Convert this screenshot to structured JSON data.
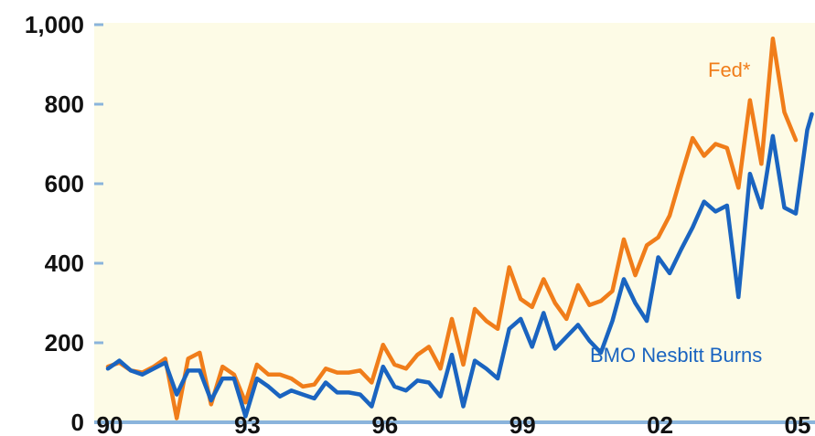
{
  "chart_data": {
    "type": "line",
    "title": "",
    "xlabel": "",
    "ylabel": "",
    "ylim": [
      0,
      1000
    ],
    "xlim": [
      1990,
      2005
    ],
    "grid": false,
    "y_ticks": [
      {
        "value": 0,
        "label": "0"
      },
      {
        "value": 200,
        "label": "200"
      },
      {
        "value": 400,
        "label": "400"
      },
      {
        "value": 600,
        "label": "600"
      },
      {
        "value": 800,
        "label": "800"
      },
      {
        "value": 1000,
        "label": "1,000"
      }
    ],
    "x_ticks": [
      {
        "value": 1990,
        "label": "90"
      },
      {
        "value": 1993,
        "label": "93"
      },
      {
        "value": 1996,
        "label": "96"
      },
      {
        "value": 1999,
        "label": "99"
      },
      {
        "value": 2002,
        "label": "02"
      },
      {
        "value": 2005,
        "label": "05"
      }
    ],
    "colors": {
      "plot_background": "#fdfbe6",
      "axis": "#8ab4dc",
      "fed": "#f07d1a",
      "bmo": "#1a64c0"
    },
    "series": [
      {
        "name": "Fed*",
        "color": "#f07d1a",
        "points": [
          [
            1990.0,
            140
          ],
          [
            1990.25,
            150
          ],
          [
            1990.5,
            130
          ],
          [
            1990.75,
            125
          ],
          [
            1991.0,
            140
          ],
          [
            1991.25,
            160
          ],
          [
            1991.5,
            10
          ],
          [
            1991.75,
            160
          ],
          [
            1992.0,
            175
          ],
          [
            1992.25,
            45
          ],
          [
            1992.5,
            140
          ],
          [
            1992.75,
            120
          ],
          [
            1993.0,
            50
          ],
          [
            1993.25,
            145
          ],
          [
            1993.5,
            120
          ],
          [
            1993.75,
            120
          ],
          [
            1994.0,
            110
          ],
          [
            1994.25,
            90
          ],
          [
            1994.5,
            95
          ],
          [
            1994.75,
            135
          ],
          [
            1995.0,
            125
          ],
          [
            1995.25,
            125
          ],
          [
            1995.5,
            130
          ],
          [
            1995.75,
            100
          ],
          [
            1996.0,
            195
          ],
          [
            1996.25,
            145
          ],
          [
            1996.5,
            135
          ],
          [
            1996.75,
            170
          ],
          [
            1997.0,
            190
          ],
          [
            1997.25,
            135
          ],
          [
            1997.5,
            260
          ],
          [
            1997.75,
            145
          ],
          [
            1998.0,
            285
          ],
          [
            1998.25,
            255
          ],
          [
            1998.5,
            235
          ],
          [
            1998.75,
            390
          ],
          [
            1999.0,
            310
          ],
          [
            1999.25,
            290
          ],
          [
            1999.5,
            360
          ],
          [
            1999.75,
            300
          ],
          [
            2000.0,
            260
          ],
          [
            2000.25,
            345
          ],
          [
            2000.5,
            295
          ],
          [
            2000.75,
            305
          ],
          [
            2001.0,
            330
          ],
          [
            2001.25,
            460
          ],
          [
            2001.5,
            370
          ],
          [
            2001.75,
            445
          ],
          [
            2002.0,
            465
          ],
          [
            2002.25,
            520
          ],
          [
            2002.5,
            620
          ],
          [
            2002.75,
            715
          ],
          [
            2003.0,
            670
          ],
          [
            2003.25,
            700
          ],
          [
            2003.5,
            690
          ],
          [
            2003.75,
            590
          ],
          [
            2004.0,
            810
          ],
          [
            2004.25,
            650
          ],
          [
            2004.5,
            965
          ],
          [
            2004.75,
            780
          ],
          [
            2005.0,
            710
          ]
        ]
      },
      {
        "name": "BMO Nesbitt Burns",
        "color": "#1a64c0",
        "points": [
          [
            1990.0,
            135
          ],
          [
            1990.25,
            155
          ],
          [
            1990.5,
            130
          ],
          [
            1990.75,
            120
          ],
          [
            1991.0,
            135
          ],
          [
            1991.25,
            150
          ],
          [
            1991.5,
            70
          ],
          [
            1991.75,
            130
          ],
          [
            1992.0,
            130
          ],
          [
            1992.25,
            55
          ],
          [
            1992.5,
            110
          ],
          [
            1992.75,
            110
          ],
          [
            1993.0,
            15
          ],
          [
            1993.25,
            110
          ],
          [
            1993.5,
            90
          ],
          [
            1993.75,
            65
          ],
          [
            1994.0,
            80
          ],
          [
            1994.25,
            70
          ],
          [
            1994.5,
            60
          ],
          [
            1994.75,
            100
          ],
          [
            1995.0,
            75
          ],
          [
            1995.25,
            75
          ],
          [
            1995.5,
            70
          ],
          [
            1995.75,
            40
          ],
          [
            1996.0,
            140
          ],
          [
            1996.25,
            90
          ],
          [
            1996.5,
            80
          ],
          [
            1996.75,
            105
          ],
          [
            1997.0,
            100
          ],
          [
            1997.25,
            65
          ],
          [
            1997.5,
            170
          ],
          [
            1997.75,
            40
          ],
          [
            1998.0,
            155
          ],
          [
            1998.25,
            135
          ],
          [
            1998.5,
            110
          ],
          [
            1998.75,
            235
          ],
          [
            1999.0,
            260
          ],
          [
            1999.25,
            190
          ],
          [
            1999.5,
            275
          ],
          [
            1999.75,
            185
          ],
          [
            2000.0,
            215
          ],
          [
            2000.25,
            245
          ],
          [
            2000.5,
            205
          ],
          [
            2000.75,
            175
          ],
          [
            2001.0,
            255
          ],
          [
            2001.25,
            360
          ],
          [
            2001.5,
            300
          ],
          [
            2001.75,
            255
          ],
          [
            2002.0,
            415
          ],
          [
            2002.25,
            375
          ],
          [
            2002.5,
            435
          ],
          [
            2002.75,
            490
          ],
          [
            2003.0,
            555
          ],
          [
            2003.25,
            530
          ],
          [
            2003.5,
            545
          ],
          [
            2003.75,
            315
          ],
          [
            2004.0,
            625
          ],
          [
            2004.25,
            540
          ],
          [
            2004.5,
            720
          ],
          [
            2004.75,
            540
          ],
          [
            2005.0,
            525
          ],
          [
            2005.25,
            735
          ],
          [
            2005.35,
            775
          ]
        ]
      }
    ],
    "labels": {
      "fed": "Fed*",
      "bmo": "BMO Nesbitt Burns"
    }
  }
}
